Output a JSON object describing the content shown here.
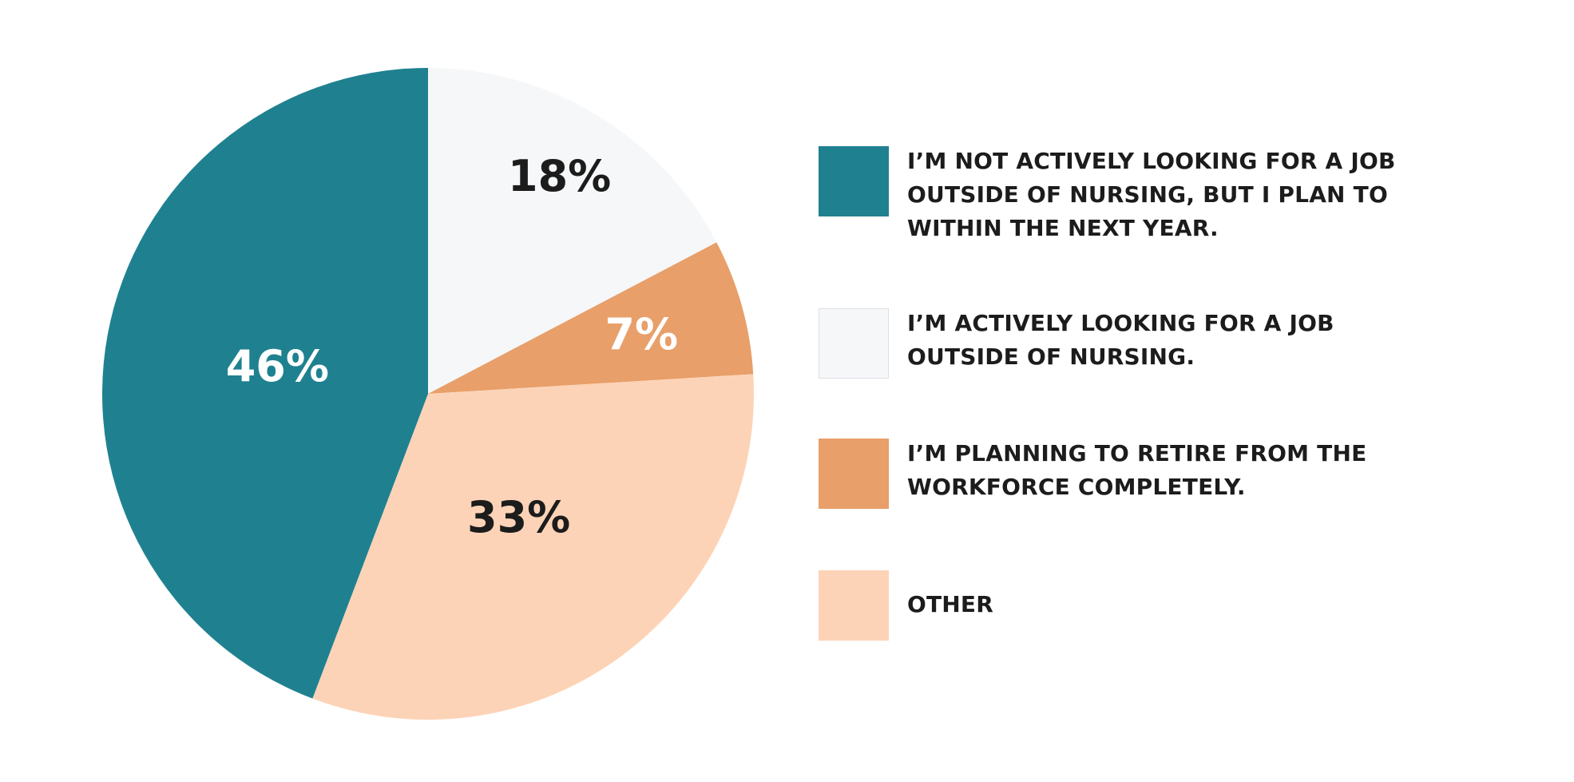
{
  "chart_data": {
    "type": "pie",
    "slices": [
      {
        "label": "I'M NOT ACTIVELY LOOKING FOR A JOB OUTSIDE OF NURSING, BUT I PLAN TO WITHIN THE NEXT YEAR.",
        "value": 46,
        "display": "46%",
        "color": "#1f8190",
        "text_color": "#ffffff"
      },
      {
        "label": "I'M ACTIVELY LOOKING FOR A JOB OUTSIDE OF NURSING.",
        "value": 18,
        "display": "18%",
        "color": "#f5f7f9",
        "text_color": "#1c1c1c"
      },
      {
        "label": "I'M PLANNING TO RETIRE FROM THE WORKFORCE COMPLETELY.",
        "value": 7,
        "display": "7%",
        "color": "#e89f69",
        "text_color": "#ffffff"
      },
      {
        "label": "OTHER",
        "value": 33,
        "display": "33%",
        "color": "#fdd3b7",
        "text_color": "#1c1c1c"
      }
    ],
    "draw_order": [
      1,
      2,
      3,
      0
    ],
    "legend_position": "right"
  },
  "legend": {
    "items": [
      {
        "lines": [
          "I’M NOT ACTIVELY LOOKING FOR A JOB",
          "OUTSIDE OF NURSING, BUT I PLAN TO",
          "WITHIN THE NEXT YEAR."
        ]
      },
      {
        "lines": [
          "I’M ACTIVELY LOOKING FOR A JOB",
          "OUTSIDE OF NURSING."
        ]
      },
      {
        "lines": [
          "I’M PLANNING TO RETIRE FROM THE",
          "WORKFORCE COMPLETELY."
        ]
      },
      {
        "lines": [
          "OTHER"
        ]
      }
    ]
  }
}
